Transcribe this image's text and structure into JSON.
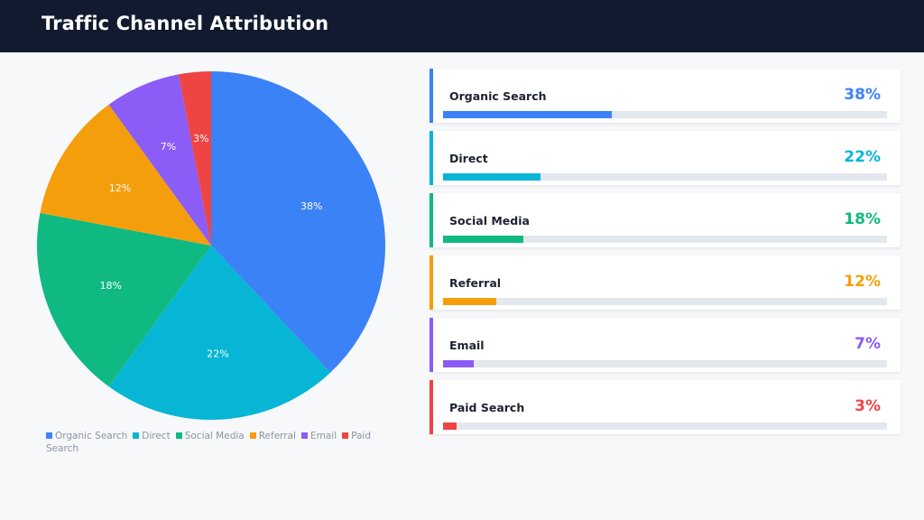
{
  "header": {
    "title": "Traffic Channel Attribution"
  },
  "chart_data": {
    "type": "pie",
    "title": "Traffic Channel Attribution",
    "categories": [
      "Organic Search",
      "Direct",
      "Social Media",
      "Referral",
      "Email",
      "Paid Search"
    ],
    "values": [
      38,
      22,
      18,
      12,
      7,
      3
    ],
    "labels": [
      "38%",
      "22%",
      "18%",
      "12%",
      "7%",
      "3%"
    ],
    "colors": [
      "#3b82f6",
      "#06b6d4",
      "#10b981",
      "#f59e0b",
      "#8b5cf6",
      "#ef4444"
    ],
    "legend_position": "bottom"
  },
  "cards": [
    {
      "label": "Organic Search",
      "pct_text": "38%",
      "value": 38,
      "color": "#3b82f6"
    },
    {
      "label": "Direct",
      "pct_text": "22%",
      "value": 22,
      "color": "#06b6d4"
    },
    {
      "label": "Social Media",
      "pct_text": "18%",
      "value": 18,
      "color": "#10b981"
    },
    {
      "label": "Referral",
      "pct_text": "12%",
      "value": 12,
      "color": "#f59e0b"
    },
    {
      "label": "Email",
      "pct_text": "7%",
      "value": 7,
      "color": "#8b5cf6"
    },
    {
      "label": "Paid Search",
      "pct_text": "3%",
      "value": 3,
      "color": "#ef4444"
    }
  ]
}
